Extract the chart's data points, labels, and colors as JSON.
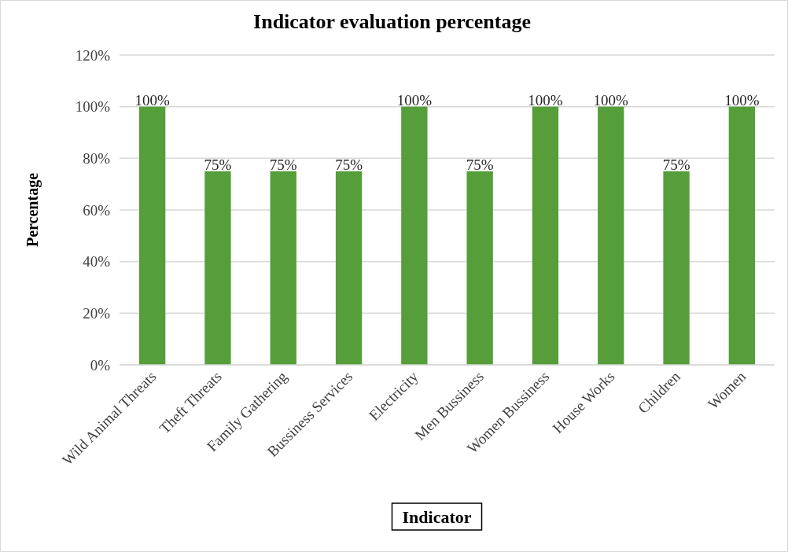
{
  "chart_data": {
    "type": "bar",
    "title": "Indicator evaluation percentage",
    "xlabel": "Indicator",
    "ylabel": "Percentage",
    "categories": [
      "Wild Animal Threats",
      "Theft Threats",
      "Family Gathering",
      "Bussiness Services",
      "Electricity",
      "Men Bussiness",
      "Women Bussiness",
      "House Works",
      "Children",
      "Women"
    ],
    "values": [
      100,
      75,
      75,
      75,
      100,
      75,
      100,
      100,
      75,
      100
    ],
    "value_labels": [
      "100%",
      "75%",
      "75%",
      "75%",
      "100%",
      "75%",
      "100%",
      "100%",
      "75%",
      "100%"
    ],
    "color": "#559e3a",
    "ylim": [
      0,
      120
    ],
    "yticks": [
      {
        "value": 0,
        "label": "0%"
      },
      {
        "value": 20,
        "label": "20%"
      },
      {
        "value": 40,
        "label": "40%"
      },
      {
        "value": 60,
        "label": "60%"
      },
      {
        "value": 80,
        "label": "80%"
      },
      {
        "value": 100,
        "label": "100%"
      },
      {
        "value": 120,
        "label": "120%"
      }
    ],
    "grid": "y"
  }
}
